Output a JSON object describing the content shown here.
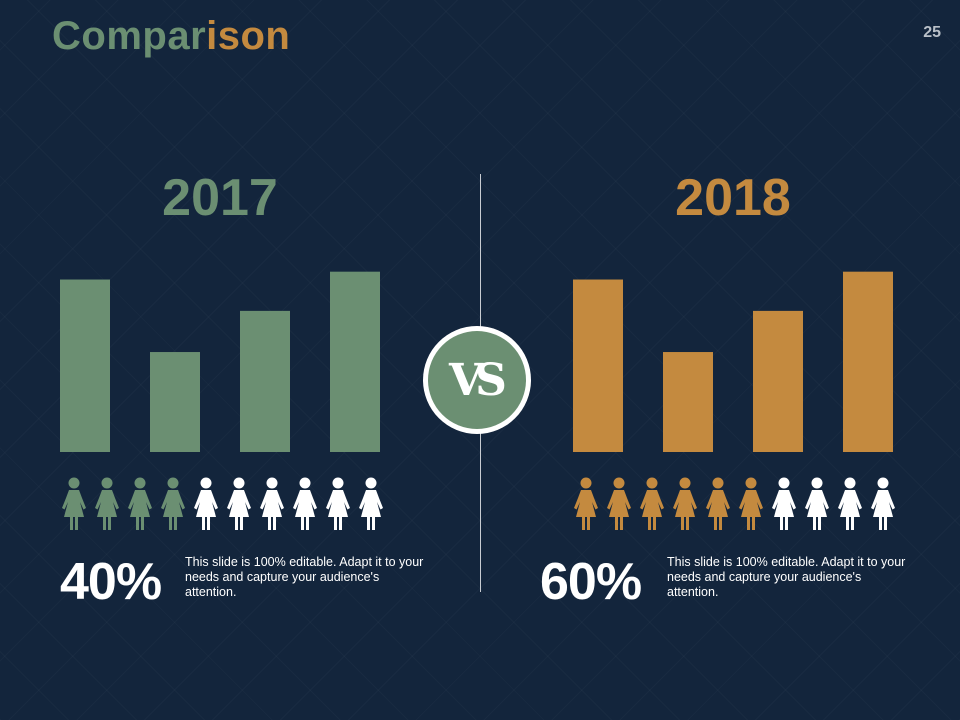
{
  "slide": {
    "title_part1": "Compar",
    "title_part2": "ison",
    "page_number": "25",
    "vs_label": "VS"
  },
  "colors": {
    "background": "#13253c",
    "green": "#6b8f72",
    "gold": "#c48a3f",
    "white": "#ffffff"
  },
  "left": {
    "year": "2017",
    "percent": "40%",
    "description": "This slide is 100% editable. Adapt it to your needs and capture your audience's attention."
  },
  "right": {
    "year": "2018",
    "percent": "60%",
    "description": "This slide is 100% editable. Adapt it to your needs and capture your audience's attention."
  },
  "chart_data": [
    {
      "type": "bar",
      "title": "2017",
      "categories": [
        "",
        "",
        "",
        ""
      ],
      "values": [
        88,
        51,
        72,
        92
      ],
      "ylim": [
        0,
        100
      ],
      "color": "#6b8f72",
      "grid": false
    },
    {
      "type": "bar",
      "title": "2018",
      "categories": [
        "",
        "",
        "",
        ""
      ],
      "values": [
        88,
        51,
        72,
        92
      ],
      "ylim": [
        0,
        100
      ],
      "color": "#c48a3f",
      "grid": false
    },
    {
      "type": "pictograph",
      "title": "2017",
      "total_icons": 10,
      "highlighted_icons": 4,
      "value_percent": 40,
      "highlight_color": "#6b8f72",
      "base_color": "#ffffff",
      "icon": "woman-icon"
    },
    {
      "type": "pictograph",
      "title": "2018",
      "total_icons": 10,
      "highlighted_icons": 6,
      "value_percent": 60,
      "highlight_color": "#c48a3f",
      "base_color": "#ffffff",
      "icon": "woman-icon"
    }
  ]
}
